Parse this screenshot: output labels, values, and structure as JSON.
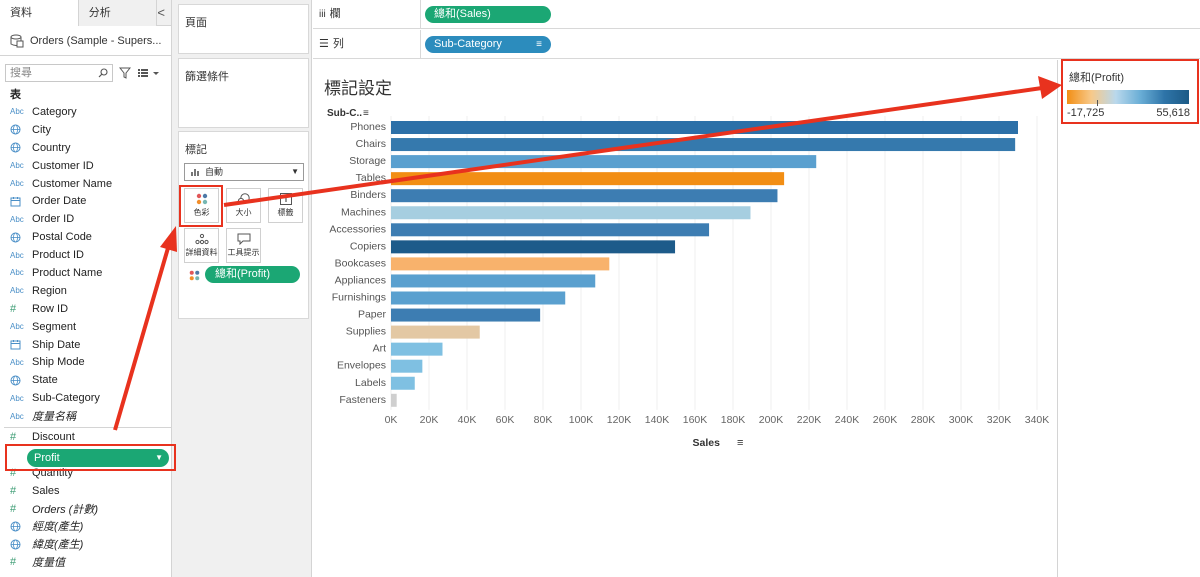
{
  "sidebar": {
    "tabs": [
      "資料",
      "分析"
    ],
    "collapse_glyph": "<",
    "data_source": "Orders (Sample - Supers...",
    "search_placeholder": "搜尋",
    "section_title": "表",
    "dimensions": [
      {
        "type": "Abc",
        "name": "Category",
        "italic": false
      },
      {
        "type": "geo",
        "name": "City",
        "italic": false
      },
      {
        "type": "geo",
        "name": "Country",
        "italic": false
      },
      {
        "type": "Abc",
        "name": "Customer ID",
        "italic": false
      },
      {
        "type": "Abc",
        "name": "Customer Name",
        "italic": false
      },
      {
        "type": "date",
        "name": "Order Date",
        "italic": false
      },
      {
        "type": "Abc",
        "name": "Order ID",
        "italic": false
      },
      {
        "type": "geo",
        "name": "Postal Code",
        "italic": false
      },
      {
        "type": "Abc",
        "name": "Product ID",
        "italic": false
      },
      {
        "type": "Abc",
        "name": "Product Name",
        "italic": false
      },
      {
        "type": "Abc",
        "name": "Region",
        "italic": false
      },
      {
        "type": "#",
        "name": "Row ID",
        "italic": false
      },
      {
        "type": "Abc",
        "name": "Segment",
        "italic": false
      },
      {
        "type": "date",
        "name": "Ship Date",
        "italic": false
      },
      {
        "type": "Abc",
        "name": "Ship Mode",
        "italic": false
      },
      {
        "type": "geo",
        "name": "State",
        "italic": false
      },
      {
        "type": "Abc",
        "name": "Sub-Category",
        "italic": false
      },
      {
        "type": "Abc",
        "name": "度量名稱",
        "italic": true
      }
    ],
    "measures": [
      {
        "type": "#",
        "name": "Discount",
        "italic": false
      },
      {
        "type": "#",
        "name": "Profit",
        "italic": false,
        "selected": true
      },
      {
        "type": "#",
        "name": "Quantity",
        "italic": false
      },
      {
        "type": "#",
        "name": "Sales",
        "italic": false
      },
      {
        "type": "#",
        "name": "Orders (計數)",
        "italic": true
      },
      {
        "type": "geo",
        "name": "經度(產生)",
        "italic": true
      },
      {
        "type": "geo",
        "name": "緯度(產生)",
        "italic": true
      },
      {
        "type": "#",
        "name": "度量值",
        "italic": true
      }
    ]
  },
  "cards": {
    "pages_title": "頁面",
    "filters_title": "篩選條件",
    "marks_title": "標記",
    "marks_type": "自動",
    "buttons": {
      "color": "色彩",
      "size": "大小",
      "label": "標籤",
      "detail": "詳細資料",
      "tooltip": "工具提示"
    },
    "color_pill": "總和(Profit)"
  },
  "shelves": {
    "columns_label": "欄",
    "columns_pill": "總和(Sales)",
    "rows_label": "列",
    "rows_pill": "Sub-Category"
  },
  "viz": {
    "title": "標記設定"
  },
  "legend": {
    "title": "總和(Profit)",
    "min": "-17,725",
    "max": "55,618"
  },
  "colors": {
    "pill_green": "#1ba774",
    "pill_blue": "#2c8cbd",
    "annotation_red": "#e8321e"
  },
  "chart_data": {
    "type": "bar",
    "orientation": "horizontal",
    "title": "標記設定",
    "ylabel": "Sub-C..",
    "xlabel": "Sales",
    "xlim": [
      0,
      340000
    ],
    "xticks": [
      "0K",
      "20K",
      "40K",
      "60K",
      "80K",
      "100K",
      "120K",
      "140K",
      "160K",
      "180K",
      "200K",
      "220K",
      "240K",
      "260K",
      "280K",
      "300K",
      "320K",
      "340K"
    ],
    "xtick_values": [
      0,
      20000,
      40000,
      60000,
      80000,
      100000,
      120000,
      140000,
      160000,
      180000,
      200000,
      220000,
      240000,
      260000,
      280000,
      300000,
      320000,
      340000
    ],
    "categories": [
      "Phones",
      "Chairs",
      "Storage",
      "Tables",
      "Binders",
      "Machines",
      "Accessories",
      "Copiers",
      "Bookcases",
      "Appliances",
      "Furnishings",
      "Paper",
      "Supplies",
      "Art",
      "Envelopes",
      "Labels",
      "Fasteners"
    ],
    "values": [
      330000,
      328500,
      223800,
      206900,
      203400,
      189200,
      167400,
      149500,
      114900,
      107500,
      91700,
      78500,
      46700,
      27100,
      16500,
      12500,
      3000
    ],
    "bar_colors": [
      "#2c70a8",
      "#3579ad",
      "#5aa0cf",
      "#f28e14",
      "#3d7db2",
      "#a6cee0",
      "#3d7db2",
      "#1d5b8a",
      "#f8b26c",
      "#5aa0cf",
      "#5aa0cf",
      "#3d7db2",
      "#e3c8a4",
      "#7fc0e2",
      "#7fc0e2",
      "#7fc0e2",
      "#cfcfcf"
    ]
  }
}
